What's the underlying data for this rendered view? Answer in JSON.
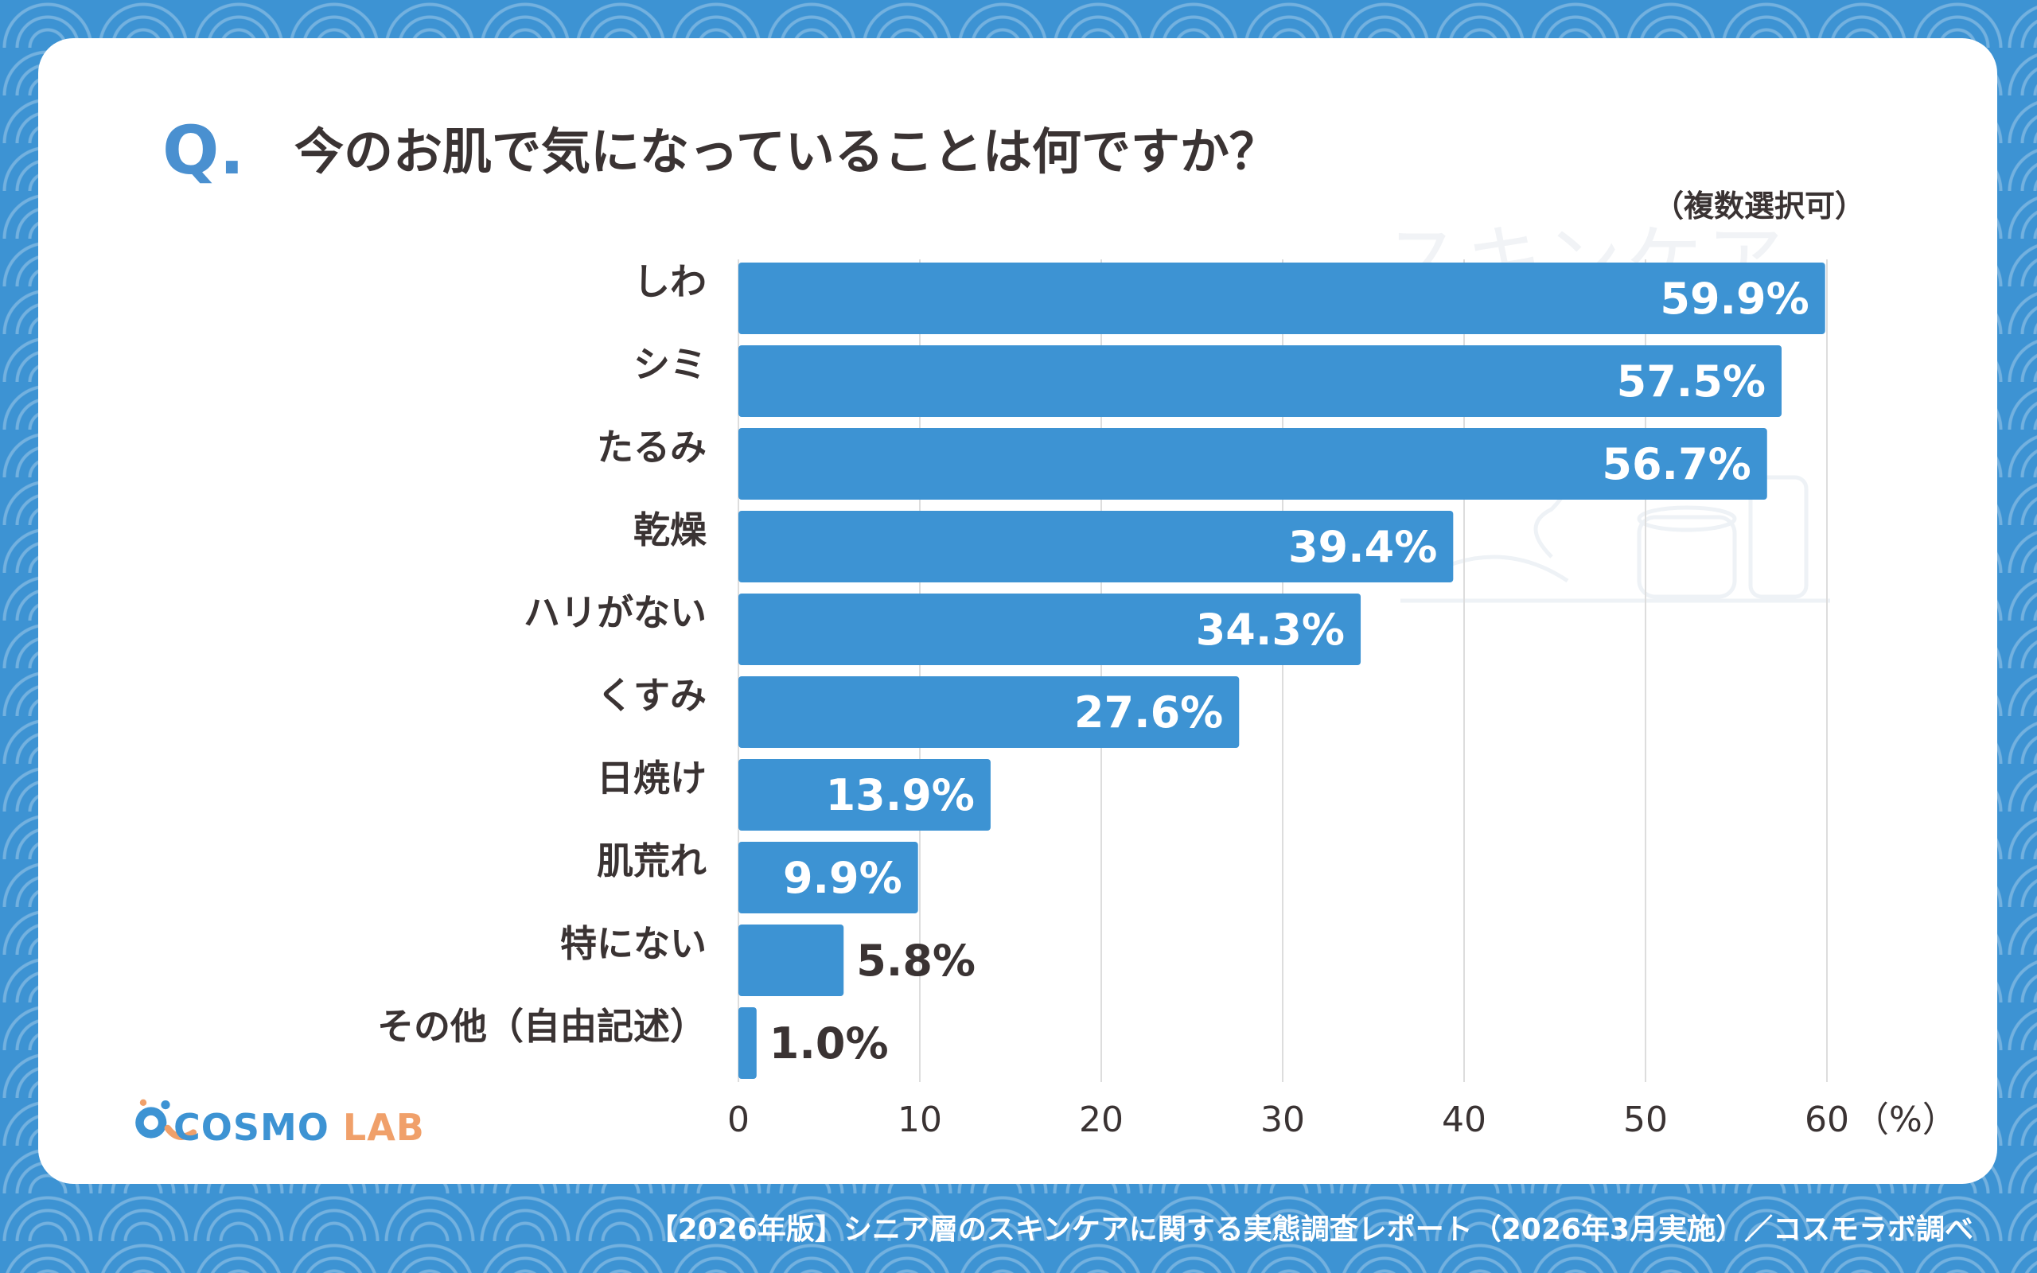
{
  "question": {
    "mark": "Q.",
    "text": "今のお肌で気になっていることは何ですか？",
    "note": "（複数選択可）"
  },
  "watermark": "スキンケア",
  "chart_data": {
    "type": "bar",
    "orientation": "horizontal",
    "categories": [
      "しわ",
      "シミ",
      "たるみ",
      "乾燥",
      "ハリがない",
      "くすみ",
      "日焼け",
      "肌荒れ",
      "特にない",
      "その他（自由記述）"
    ],
    "values": [
      59.9,
      57.5,
      56.7,
      39.4,
      34.3,
      27.6,
      13.9,
      9.9,
      5.8,
      1.0
    ],
    "value_labels": [
      "59.9%",
      "57.5%",
      "56.7%",
      "39.4%",
      "34.3%",
      "27.6%",
      "13.9%",
      "9.9%",
      "5.8%",
      "1.0%"
    ],
    "xlim": [
      0,
      60
    ],
    "xticks": [
      "0",
      "10",
      "20",
      "30",
      "40",
      "50",
      "60"
    ],
    "xunit": "（%）",
    "grid": true,
    "bar_color": "#3d93d3"
  },
  "logo": {
    "name": "COSMO",
    "suffix": "LAB"
  },
  "footer": "【2026年版】シニア層のスキンケアに関する実態調査レポート（2026年3月実施）／コスモラボ調べ",
  "colors": {
    "accent": "#3d93d3",
    "text": "#3a3333",
    "logo_orange": "#f0a06a"
  }
}
